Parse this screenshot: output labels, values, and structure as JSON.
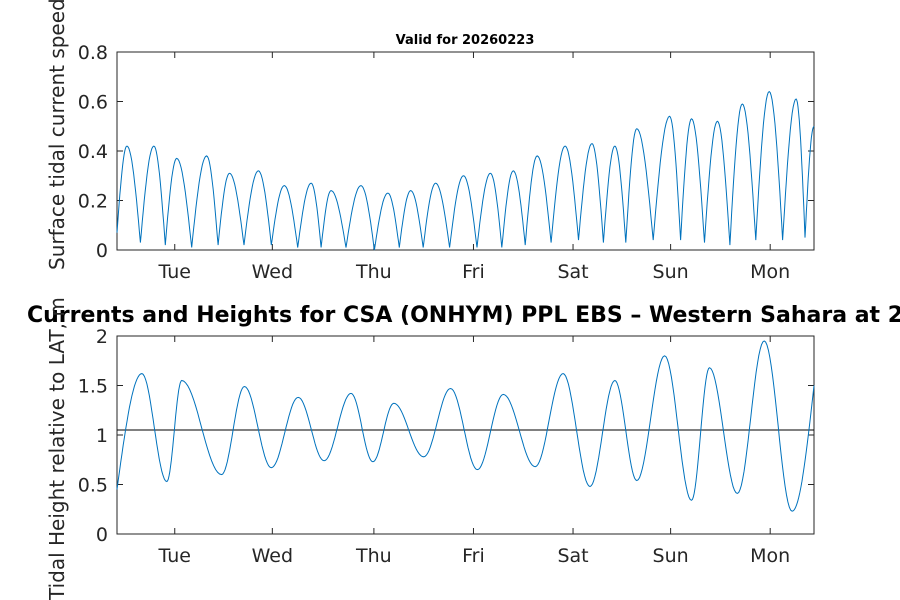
{
  "chart_data": [
    {
      "type": "line",
      "title": "Valid for 20260223",
      "xlabel": "",
      "ylabel": "Surface tidal current speed, kn",
      "x_ticks": [
        "Tue",
        "Wed",
        "Thu",
        "Fri",
        "Sat",
        "Sun",
        "Mon"
      ],
      "xlim_days": [
        0,
        7
      ],
      "ylim": [
        0,
        0.8
      ],
      "y_ticks": [
        0,
        0.2,
        0.4,
        0.6,
        0.8
      ],
      "y_tick_labels": [
        "0",
        "0.2",
        "0.4",
        "0.6",
        "0.8"
      ],
      "series": [
        {
          "name": "Current speed",
          "color": "#0072BD",
          "peak_times_days": [
            0.1,
            0.37,
            0.6,
            0.9,
            1.13,
            1.42,
            1.68,
            1.95,
            2.15,
            2.45,
            2.72,
            2.95,
            3.2,
            3.48,
            3.75,
            3.98,
            4.22,
            4.5,
            4.77,
            5.0,
            5.22,
            5.55,
            5.77,
            6.03,
            6.28,
            6.55,
            6.82,
            7.0
          ],
          "peak_values": [
            0.42,
            0.42,
            0.37,
            0.38,
            0.31,
            0.32,
            0.26,
            0.27,
            0.24,
            0.26,
            0.23,
            0.24,
            0.27,
            0.3,
            0.31,
            0.32,
            0.38,
            0.42,
            0.43,
            0.42,
            0.49,
            0.54,
            0.53,
            0.52,
            0.59,
            0.64,
            0.61,
            0.5
          ],
          "trough_values": [
            0.03,
            0.02,
            0.01,
            0.02,
            0.02,
            0.02,
            0.01,
            0.01,
            0.01,
            0.0,
            0.01,
            0.01,
            0.01,
            0.01,
            0.01,
            0.02,
            0.03,
            0.04,
            0.03,
            0.03,
            0.04,
            0.04,
            0.03,
            0.02,
            0.04,
            0.04,
            0.05,
            0.05
          ]
        }
      ]
    },
    {
      "type": "line",
      "title": "Currents and Heights for CSA (ONHYM) PPL EBS  – Western Sahara at 2",
      "xlabel": "",
      "ylabel": "Tidal Height relative to LAT, m",
      "x_ticks": [
        "Tue",
        "Wed",
        "Thu",
        "Fri",
        "Sat",
        "Sun",
        "Mon"
      ],
      "xlim_days": [
        0,
        7
      ],
      "ylim": [
        0,
        2
      ],
      "y_ticks": [
        0,
        0.5,
        1,
        1.5,
        2
      ],
      "y_tick_labels": [
        "0",
        "0.5",
        "1",
        "1.5",
        "2"
      ],
      "reference_line": {
        "value": 1.05,
        "color": "#000000"
      },
      "series": [
        {
          "name": "Tidal height",
          "color": "#0072BD",
          "start_value": 0.45,
          "high_times_days": [
            0.25,
            0.65,
            1.28,
            1.82,
            2.35,
            2.78,
            3.35,
            3.88,
            4.48,
            5.0,
            5.5,
            5.95,
            6.5
          ],
          "high_values": [
            1.62,
            1.55,
            1.49,
            1.38,
            1.42,
            1.32,
            1.47,
            1.41,
            1.62,
            1.55,
            1.8,
            1.68,
            1.95
          ],
          "low_times_days": [
            0.5,
            1.05,
            1.55,
            2.08,
            2.57,
            3.08,
            3.62,
            4.2,
            4.75,
            5.22,
            5.77,
            6.23,
            6.78
          ],
          "low_values": [
            0.53,
            0.6,
            0.67,
            0.74,
            0.73,
            0.78,
            0.65,
            0.68,
            0.48,
            0.54,
            0.34,
            0.41,
            0.23
          ],
          "end_value": 1.5
        }
      ]
    }
  ]
}
